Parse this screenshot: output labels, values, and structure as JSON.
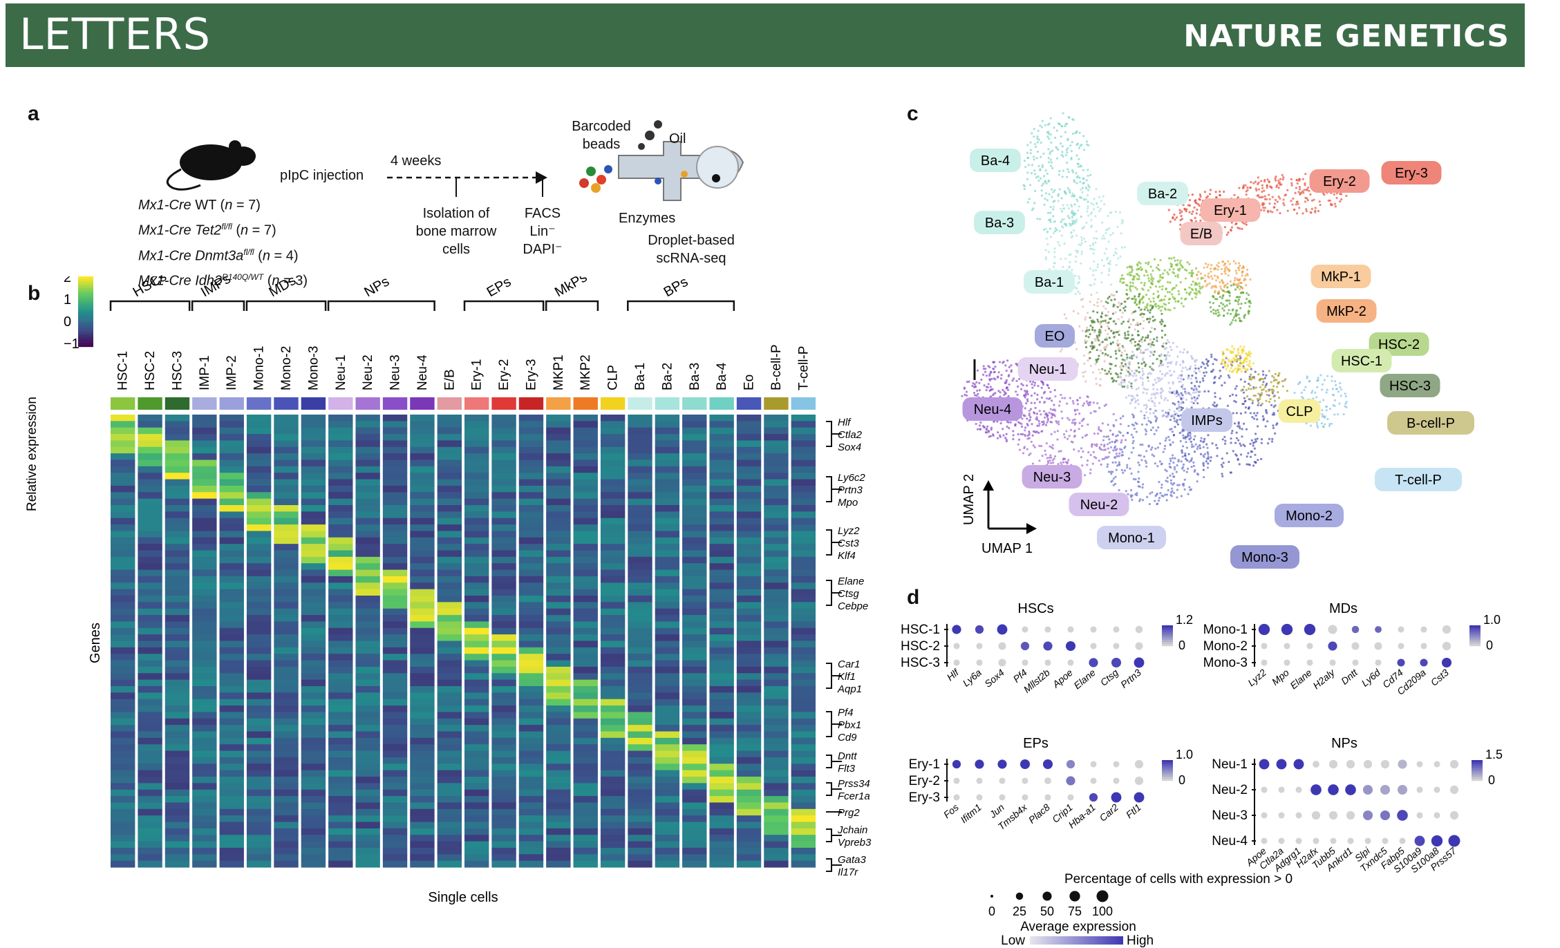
{
  "header": {
    "left": "LETTERS",
    "right": "NATURE GENETICS"
  },
  "panels": {
    "a": "a",
    "b": "b",
    "c": "c",
    "d": "d"
  },
  "panel_a": {
    "injection": "pIpC injection",
    "weeks": "4 weeks",
    "genotypes": [
      {
        "pre": "Mx1-Cre",
        "gene": "",
        "sup": "",
        "post": " WT (",
        "n": "n",
        "tail": " = 7)"
      },
      {
        "pre": "Mx1-Cre",
        "gene": " Tet2",
        "sup": "fl/fl",
        "post": " (",
        "n": "n",
        "tail": " = 7)"
      },
      {
        "pre": "Mx1-Cre",
        "gene": " Dnmt3a",
        "sup": "fl/fl",
        "post": " (",
        "n": "n",
        "tail": " = 4)"
      },
      {
        "pre": "Mx1-Cre",
        "gene": " Idh2",
        "sup": "R140Q/WT",
        "post": " (",
        "n": "n",
        "tail": " = 3)"
      }
    ],
    "isolation": [
      "Isolation of",
      "bone marrow",
      "cells"
    ],
    "facs": [
      "FACS",
      "Lin⁻",
      "DAPI⁻"
    ],
    "beads": [
      "Barcoded",
      "beads"
    ],
    "oil": "Oil",
    "enzymes": "Enzymes",
    "droplet": [
      "Droplet-based",
      "scRNA-seq"
    ]
  },
  "panel_b": {
    "groups": [
      "HSCs",
      "IMPs",
      "MDs",
      "NPs",
      "EPs",
      "MkPs",
      "BPs"
    ],
    "clusters": [
      {
        "label": "HSC-1",
        "color": "#8cc63f"
      },
      {
        "label": "HSC-2",
        "color": "#4e9a2a"
      },
      {
        "label": "HSC-3",
        "color": "#2e6b2e"
      },
      {
        "label": "IMP-1",
        "color": "#a9acdf"
      },
      {
        "label": "IMP-2",
        "color": "#9aa0dc"
      },
      {
        "label": "Mono-1",
        "color": "#6871c8"
      },
      {
        "label": "Mono-2",
        "color": "#4a53b8"
      },
      {
        "label": "Mono-3",
        "color": "#3a3fa6"
      },
      {
        "label": "Neu-1",
        "color": "#d2b2e8"
      },
      {
        "label": "Neu-2",
        "color": "#a574d4"
      },
      {
        "label": "Neu-3",
        "color": "#8a4fc8"
      },
      {
        "label": "Neu-4",
        "color": "#7a37b8"
      },
      {
        "label": "E/B",
        "color": "#e39aa0"
      },
      {
        "label": "Ery-1",
        "color": "#ef7777"
      },
      {
        "label": "Ery-2",
        "color": "#e13838"
      },
      {
        "label": "Ery-3",
        "color": "#c72525"
      },
      {
        "label": "MKP1",
        "color": "#f4a044"
      },
      {
        "label": "MKP2",
        "color": "#ee7a24"
      },
      {
        "label": "CLP",
        "color": "#f1d21e"
      },
      {
        "label": "Ba-1",
        "color": "#c5ede8"
      },
      {
        "label": "Ba-2",
        "color": "#a7e4dc"
      },
      {
        "label": "Ba-3",
        "color": "#8edbd0"
      },
      {
        "label": "Ba-4",
        "color": "#6ed1c4"
      },
      {
        "label": "Eo",
        "color": "#4857b8"
      },
      {
        "label": "B-cell-P",
        "color": "#a99a2c"
      },
      {
        "label": "T-cell-P",
        "color": "#86c4e4"
      }
    ],
    "legend_title": "Relative expression",
    "legend_ticks": [
      "2",
      "1",
      "0",
      "−1"
    ],
    "y_label": "Genes",
    "x_label": "Single cells",
    "marker_genes": [
      [
        "Hlf",
        "Ctla2",
        "Sox4"
      ],
      [
        "Ly6c2",
        "Prtn3",
        "Mpo"
      ],
      [
        "Lyz2",
        "Cst3",
        "Klf4"
      ],
      [
        "Elane",
        "Ctsg",
        "Cebpe"
      ],
      [
        "Car1",
        "Klf1",
        "Aqp1"
      ],
      [
        "Pf4",
        "Pbx1",
        "Cd9"
      ],
      [
        "Dntt",
        "Flt3"
      ],
      [
        "Prss34",
        "Fcer1a"
      ],
      [
        "Prg2"
      ],
      [
        "Jchain",
        "Vpreb3"
      ],
      [
        "Gata3",
        "Il17r"
      ]
    ]
  },
  "panel_c": {
    "axis_x": "UMAP 1",
    "axis_y": "UMAP 2",
    "labels": [
      {
        "text": "Ba-4",
        "color": "#c9efe9"
      },
      {
        "text": "Ba-2",
        "color": "#d3f2ee"
      },
      {
        "text": "Ba-3",
        "color": "#c9efe9"
      },
      {
        "text": "Ba-1",
        "color": "#d3f2ee"
      },
      {
        "text": "E/B",
        "color": "#f2c7c4"
      },
      {
        "text": "Ery-1",
        "color": "#f6b5ad"
      },
      {
        "text": "Ery-2",
        "color": "#f29a8e"
      },
      {
        "text": "Ery-3",
        "color": "#ef8479"
      },
      {
        "text": "MkP-1",
        "color": "#f8cc9c"
      },
      {
        "text": "MkP-2",
        "color": "#f6b283"
      },
      {
        "text": "EO",
        "color": "#a3a9dc"
      },
      {
        "text": "HSC-2",
        "color": "#b7d88e"
      },
      {
        "text": "HSC-1",
        "color": "#d4ebb0"
      },
      {
        "text": "HSC-3",
        "color": "#8fa784"
      },
      {
        "text": "Neu-1",
        "color": "#e4d3f1"
      },
      {
        "text": "Neu-4",
        "color": "#b796de"
      },
      {
        "text": "IMPs",
        "color": "#c3c8ea"
      },
      {
        "text": "CLP",
        "color": "#f6ef9f"
      },
      {
        "text": "B-cell-P",
        "color": "#cfc88e"
      },
      {
        "text": "Neu-3",
        "color": "#c9abe4"
      },
      {
        "text": "T-cell-P",
        "color": "#c6e4f3"
      },
      {
        "text": "Neu-2",
        "color": "#d6c0ec"
      },
      {
        "text": "Mono-2",
        "color": "#a8abe0"
      },
      {
        "text": "Mono-1",
        "color": "#cdd0ef"
      },
      {
        "text": "Mono-3",
        "color": "#9596d4"
      }
    ]
  },
  "panel_d": {
    "blocks": [
      {
        "title": "HSCs",
        "rows": [
          "HSC-1",
          "HSC-2",
          "HSC-3"
        ],
        "genes": [
          "Hlf",
          "Ly6a",
          "Sox4",
          "Pf4",
          "Mllst2b",
          "Apoe",
          "Elane",
          "Ctsg",
          "Prtn3"
        ],
        "scale_max": "1.2",
        "scale_min": "0",
        "pct": [
          [
            50,
            40,
            70,
            15,
            15,
            15,
            15,
            15,
            25
          ],
          [
            15,
            15,
            30,
            40,
            50,
            60,
            15,
            15,
            30
          ],
          [
            15,
            15,
            30,
            15,
            15,
            15,
            50,
            60,
            70
          ]
        ],
        "avg": [
          [
            1,
            0.9,
            1,
            0,
            0,
            0,
            0,
            0,
            0
          ],
          [
            0,
            0,
            0,
            0.8,
            0.9,
            1,
            0,
            0,
            0
          ],
          [
            0,
            0,
            0,
            0,
            0,
            0,
            0.9,
            0.9,
            1
          ]
        ]
      },
      {
        "title": "MDs",
        "rows": [
          "Mono-1",
          "Mono-2",
          "Mono-3"
        ],
        "genes": [
          "Lyz2",
          "Mpo",
          "Elane",
          "H2aly",
          "Dntt",
          "Ly6d",
          "Cd74",
          "Cd209a",
          "Cst3"
        ],
        "scale_max": "1.0",
        "scale_min": "0",
        "pct": [
          [
            90,
            90,
            90,
            50,
            25,
            20,
            15,
            15,
            40
          ],
          [
            15,
            15,
            15,
            50,
            30,
            30,
            15,
            15,
            40
          ],
          [
            15,
            15,
            15,
            15,
            15,
            15,
            30,
            30,
            60
          ]
        ],
        "avg": [
          [
            1,
            1,
            1,
            0,
            0.7,
            0.7,
            0,
            0,
            0
          ],
          [
            0,
            0,
            0,
            0.9,
            0,
            0,
            0,
            0,
            0
          ],
          [
            0,
            0,
            0,
            0,
            0,
            0,
            0.9,
            0.9,
            1
          ]
        ]
      },
      {
        "title": "EPs",
        "rows": [
          "Ery-1",
          "Ery-2",
          "Ery-3"
        ],
        "genes": [
          "Fos",
          "Ifitm1",
          "Jun",
          "Tmsb4x",
          "Plac8",
          "Crip1",
          "Hba-a1",
          "Car2",
          "Ftl1"
        ],
        "scale_max": "1.0",
        "scale_min": "0",
        "pct": [
          [
            40,
            50,
            50,
            60,
            60,
            40,
            15,
            15,
            40
          ],
          [
            15,
            15,
            15,
            15,
            20,
            50,
            15,
            15,
            40
          ],
          [
            15,
            15,
            15,
            15,
            15,
            15,
            40,
            70,
            70
          ]
        ],
        "avg": [
          [
            1,
            1,
            1,
            1,
            1,
            0.5,
            0,
            0,
            0
          ],
          [
            0,
            0,
            0,
            0,
            0,
            0.6,
            0,
            0,
            0
          ],
          [
            0,
            0,
            0,
            0,
            0,
            0,
            0.9,
            1,
            1
          ]
        ]
      },
      {
        "title": "NPs",
        "rows": [
          "Neu-1",
          "Neu-2",
          "Neu-3",
          "Neu-4"
        ],
        "genes": [
          "Apoe",
          "Ctla2a",
          "Adgrg1",
          "H2afx",
          "Tubb5",
          "Ankrd1",
          "Slpi",
          "Txndc5",
          "Fabp5",
          "S100a9",
          "S100a8",
          "Prss57"
        ],
        "scale_max": "1.5",
        "scale_min": "0",
        "pct": [
          [
            70,
            70,
            70,
            20,
            40,
            40,
            40,
            40,
            50,
            15,
            15,
            40
          ],
          [
            15,
            15,
            15,
            80,
            80,
            80,
            60,
            60,
            60,
            15,
            15,
            40
          ],
          [
            15,
            15,
            15,
            40,
            40,
            40,
            60,
            60,
            80,
            15,
            15,
            40
          ],
          [
            15,
            15,
            15,
            15,
            15,
            15,
            15,
            15,
            15,
            70,
            90,
            100
          ]
        ],
        "avg": [
          [
            1,
            1,
            1,
            0,
            0,
            0,
            0,
            0,
            0.2,
            0,
            0,
            0
          ],
          [
            0,
            0,
            0,
            1,
            1,
            1,
            0.4,
            0.3,
            0.3,
            0,
            0,
            0
          ],
          [
            0,
            0,
            0,
            0,
            0,
            0,
            0.5,
            0.6,
            0.9,
            0,
            0,
            0
          ],
          [
            0,
            0,
            0,
            0,
            0,
            0,
            0,
            0,
            0,
            0.9,
            1,
            1
          ]
        ]
      }
    ],
    "size_legend_title": "Percentage of cells with expression > 0",
    "size_legend_values": [
      "0",
      "25",
      "50",
      "75",
      "100"
    ],
    "avg_title": "Average expression",
    "low": "Low",
    "high": "High"
  }
}
